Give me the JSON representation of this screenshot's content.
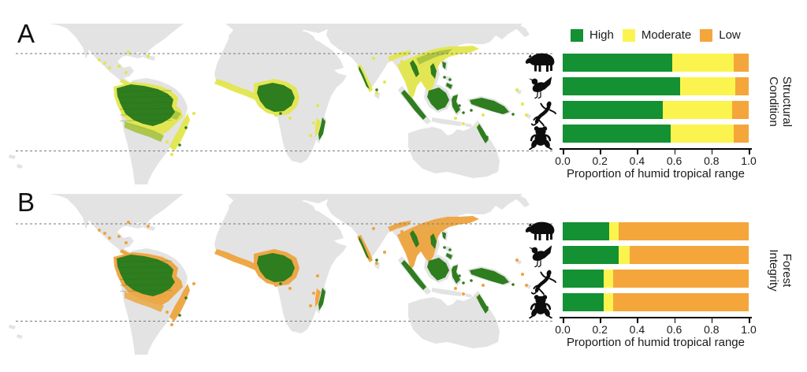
{
  "figure": {
    "background": "#ffffff",
    "panels": [
      {
        "letter": "A",
        "metric": "Structural Condition",
        "side_label_lines": [
          "Structural",
          "Condition"
        ],
        "show_legend": true
      },
      {
        "letter": "B",
        "metric": "Forest Integrity",
        "side_label_lines": [
          "Forest",
          "Integrity"
        ],
        "show_legend": false
      }
    ]
  },
  "legend": {
    "items": [
      {
        "label": "High",
        "color": "#149132"
      },
      {
        "label": "Moderate",
        "color": "#fcf44e"
      },
      {
        "label": "Low",
        "color": "#f4a63b"
      }
    ]
  },
  "axis": {
    "title": "Proportion of humid tropical range",
    "ticks": [
      "0.0",
      "0.2",
      "0.4",
      "0.6",
      "0.8",
      "1.0"
    ],
    "range": [
      0,
      1
    ]
  },
  "taxa": [
    {
      "icon": "tapir-icon",
      "label": "mammal (tapir)"
    },
    {
      "icon": "bird-icon",
      "label": "bird"
    },
    {
      "icon": "lizard-icon",
      "label": "reptile (lizard)"
    },
    {
      "icon": "frog-icon",
      "label": "amphibian (frog)"
    }
  ],
  "chart_data": [
    {
      "type": "bar",
      "orientation": "horizontal-stacked",
      "title": "Structural Condition",
      "categories": [
        "mammal (tapir)",
        "bird",
        "reptile (lizard)",
        "amphibian (frog)"
      ],
      "series": [
        {
          "name": "High",
          "color": "#149132",
          "values": [
            0.59,
            0.63,
            0.54,
            0.58
          ]
        },
        {
          "name": "Moderate",
          "color": "#fcf44e",
          "values": [
            0.33,
            0.3,
            0.37,
            0.34
          ]
        },
        {
          "name": "Low",
          "color": "#f4a63b",
          "values": [
            0.08,
            0.07,
            0.09,
            0.08
          ]
        }
      ],
      "xlabel": "Proportion of humid tropical range",
      "xlim": [
        0,
        1
      ],
      "xticks": [
        0.0,
        0.2,
        0.4,
        0.6,
        0.8,
        1.0
      ],
      "legend_position": "top",
      "grid": false
    },
    {
      "type": "bar",
      "orientation": "horizontal-stacked",
      "title": "Forest Integrity",
      "categories": [
        "mammal (tapir)",
        "bird",
        "reptile (lizard)",
        "amphibian (frog)"
      ],
      "series": [
        {
          "name": "High",
          "color": "#149132",
          "values": [
            0.25,
            0.3,
            0.22,
            0.22
          ]
        },
        {
          "name": "Moderate",
          "color": "#fcf44e",
          "values": [
            0.05,
            0.06,
            0.05,
            0.05
          ]
        },
        {
          "name": "Low",
          "color": "#f4a63b",
          "values": [
            0.7,
            0.64,
            0.73,
            0.73
          ]
        }
      ],
      "xlabel": "Proportion of humid tropical range",
      "xlim": [
        0,
        1
      ],
      "xticks": [
        0.0,
        0.2,
        0.4,
        0.6,
        0.8,
        1.0
      ],
      "legend_position": "none",
      "grid": false
    }
  ],
  "map": {
    "land_color": "#e3e3e3",
    "ocean_color": "#ffffff",
    "tropic_line_color": "#7a7a7a",
    "panel_a_palette": {
      "core": "#2e7d1e",
      "mid": "#a6c23f",
      "fringe": "#e3e64c"
    },
    "panel_b_palette": {
      "core": "#2e7d1e",
      "mid": "#e8ab4a",
      "fringe": "#eea33d"
    }
  }
}
